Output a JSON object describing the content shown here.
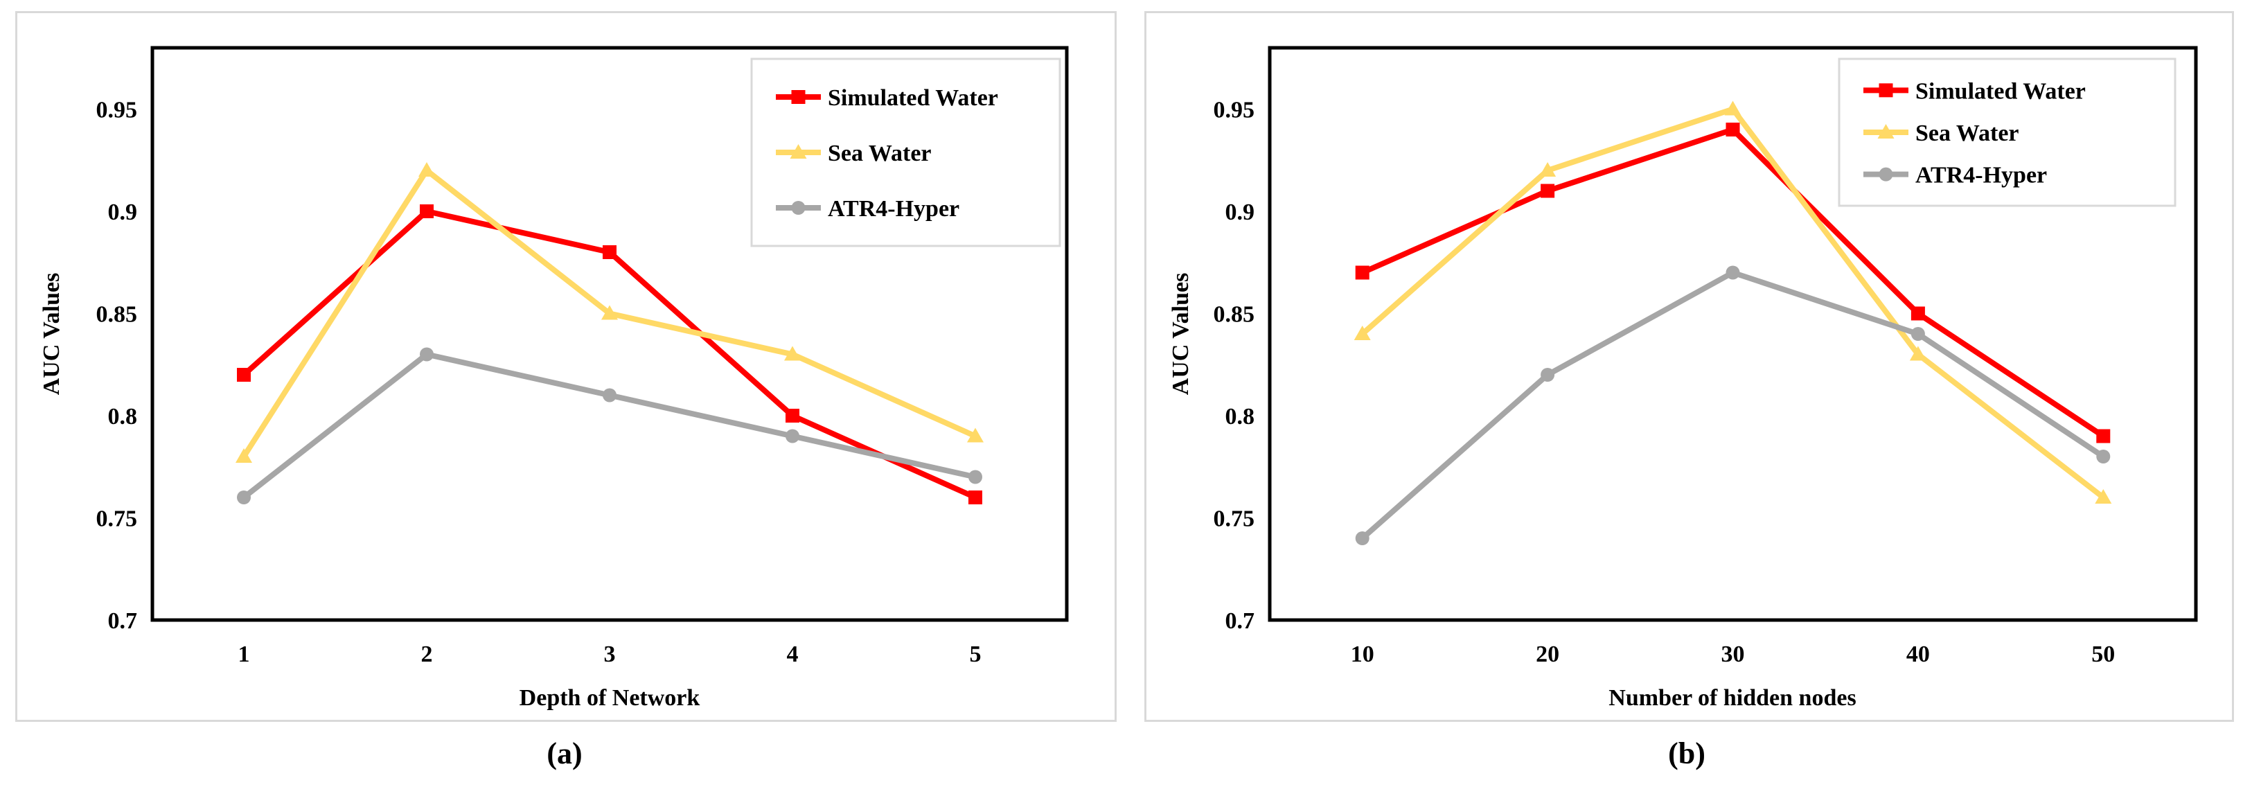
{
  "colors": {
    "simulated_water": "#ff0000",
    "sea_water": "#ffd966",
    "atr4_hyper": "#a6a6a6"
  },
  "chart_data": [
    {
      "type": "line",
      "caption": "(a)",
      "xlabel": "Depth of Network",
      "ylabel": "AUC Values",
      "x": [
        "1",
        "2",
        "3",
        "4",
        "5"
      ],
      "ylim": [
        0.7,
        0.98
      ],
      "yticks": [
        "0.7",
        "0.75",
        "0.8",
        "0.85",
        "0.9",
        "0.95"
      ],
      "grid": false,
      "legend": "top-right",
      "series": [
        {
          "name": "Simulated Water",
          "marker": "square",
          "color": "#ff0000",
          "values": [
            0.82,
            0.9,
            0.88,
            0.8,
            0.76
          ]
        },
        {
          "name": "Sea Water",
          "marker": "triangle",
          "color": "#ffd966",
          "values": [
            0.78,
            0.92,
            0.85,
            0.83,
            0.79
          ]
        },
        {
          "name": "ATR4-Hyper",
          "marker": "circle",
          "color": "#a6a6a6",
          "values": [
            0.76,
            0.83,
            0.81,
            0.79,
            0.77
          ]
        }
      ]
    },
    {
      "type": "line",
      "caption": "(b)",
      "xlabel": "Number of hidden nodes",
      "ylabel": "AUC Values",
      "x": [
        "10",
        "20",
        "30",
        "40",
        "50"
      ],
      "ylim": [
        0.7,
        0.98
      ],
      "yticks": [
        "0.7",
        "0.75",
        "0.8",
        "0.85",
        "0.9",
        "0.95"
      ],
      "grid": false,
      "legend": "top-right",
      "series": [
        {
          "name": "Simulated Water",
          "marker": "square",
          "color": "#ff0000",
          "values": [
            0.87,
            0.91,
            0.94,
            0.85,
            0.79
          ]
        },
        {
          "name": "Sea Water",
          "marker": "triangle",
          "color": "#ffd966",
          "values": [
            0.84,
            0.92,
            0.95,
            0.83,
            0.76
          ]
        },
        {
          "name": "ATR4-Hyper",
          "marker": "circle",
          "color": "#a6a6a6",
          "values": [
            0.74,
            0.82,
            0.87,
            0.84,
            0.78
          ]
        }
      ]
    }
  ]
}
